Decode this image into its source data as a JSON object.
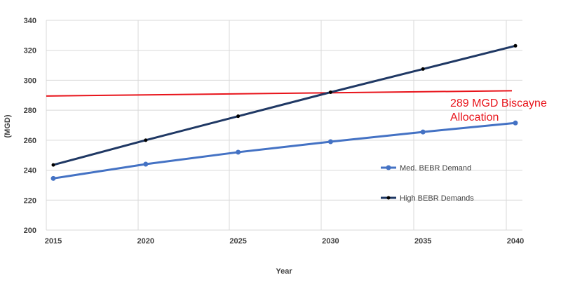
{
  "chart_data": {
    "type": "line",
    "title": "",
    "xlabel": "Year",
    "ylabel": "(MGD)",
    "x": [
      2015,
      2020,
      2025,
      2030,
      2035,
      2040
    ],
    "ylim": [
      200,
      340
    ],
    "yticks": [
      200,
      220,
      240,
      260,
      280,
      300,
      320,
      340
    ],
    "series": [
      {
        "name": "Med. BEBR Demand",
        "color": "#4472c4",
        "values": [
          234.5,
          244,
          252,
          259,
          265.5,
          271.5
        ]
      },
      {
        "name": "High BEBR Demands",
        "color": "#1f3864",
        "values": [
          243.5,
          260,
          276,
          292,
          307.5,
          323
        ]
      }
    ],
    "reference_line": {
      "label_line1": "289 MGD Biscayne",
      "label_line2": "Allocation",
      "color": "#e8141b",
      "y_start": 289.5,
      "y_end": 293
    }
  }
}
